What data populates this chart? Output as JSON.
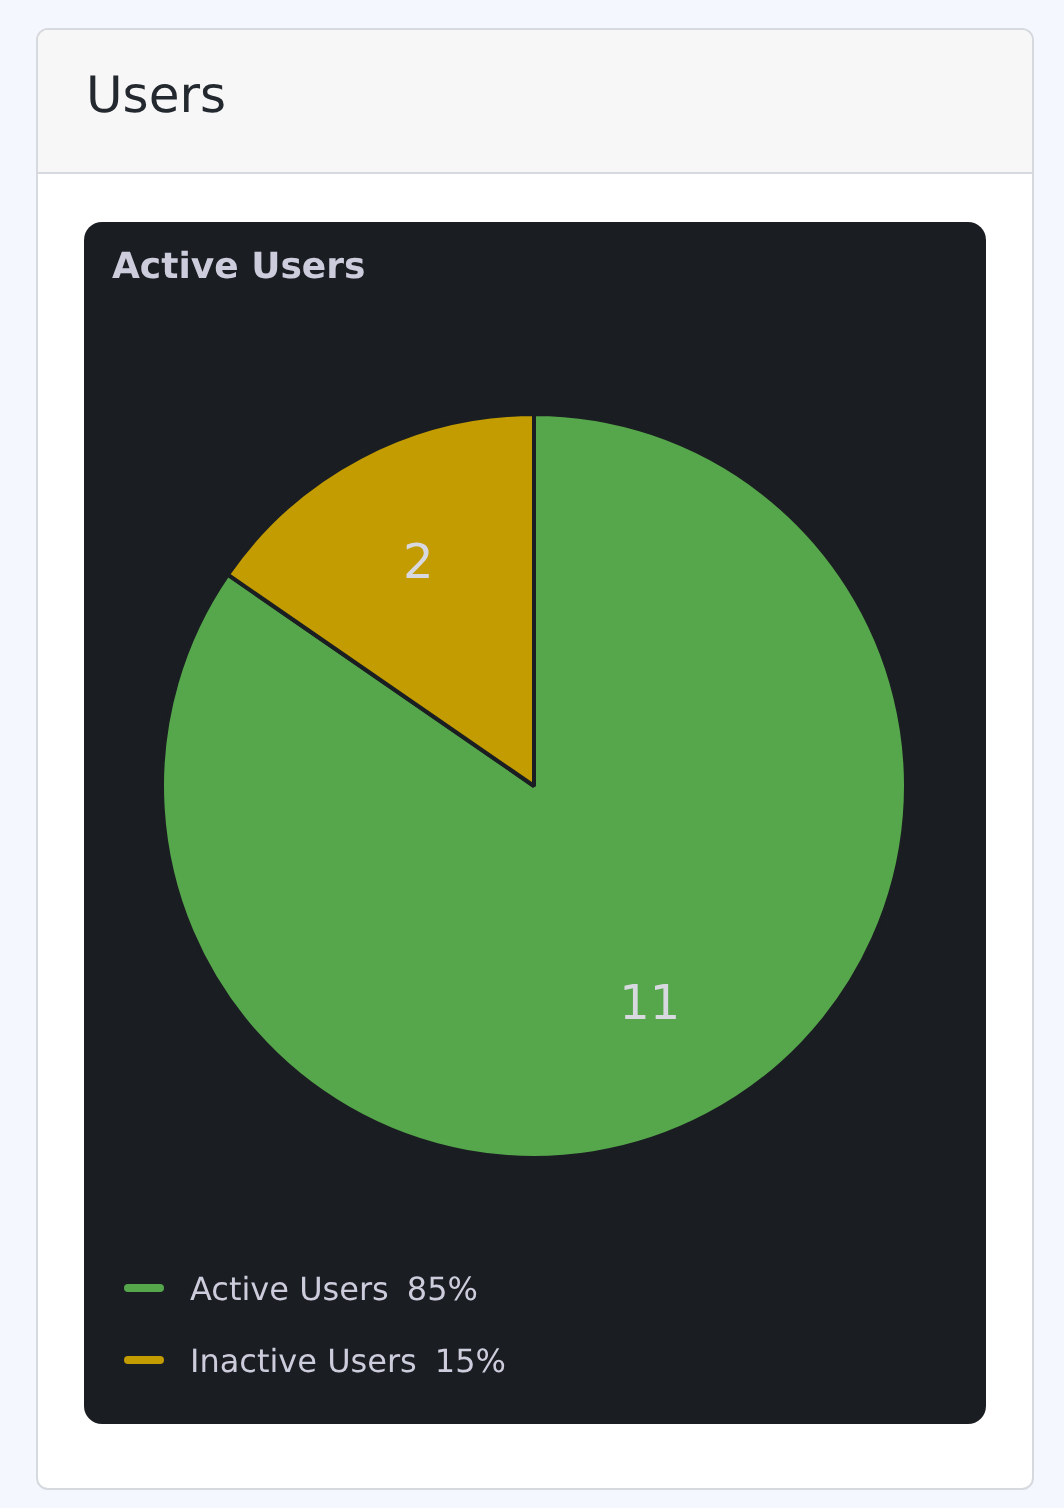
{
  "chart_data": {
    "type": "pie",
    "title": "Users",
    "subtitle": "Active Users",
    "categories": [
      "Active Users",
      "Inactive Users"
    ],
    "values": [
      11,
      2
    ],
    "colors": [
      "#56a64b",
      "#c29c00"
    ],
    "data_labels": true,
    "legend": "bottom",
    "annotations": [
      "85%",
      "15%"
    ]
  }
}
